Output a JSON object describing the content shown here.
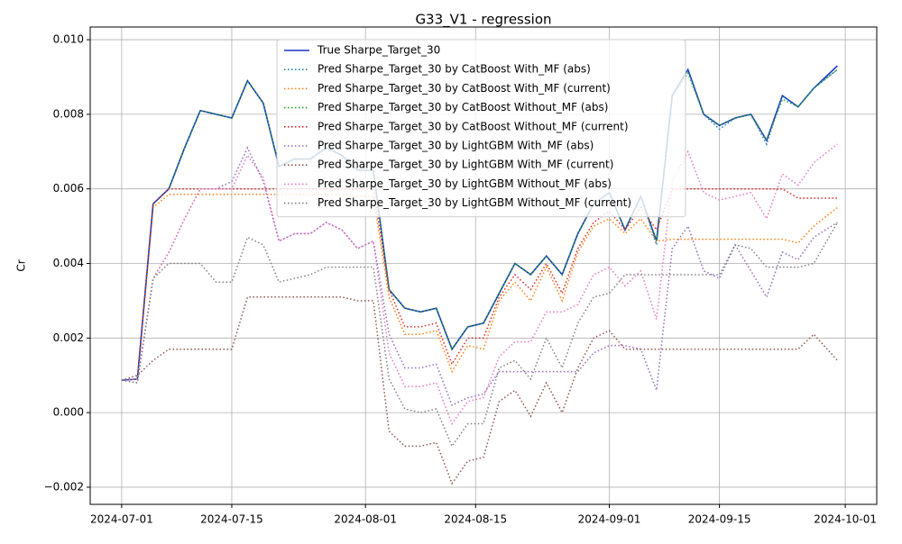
{
  "chart_data": {
    "type": "line",
    "title": "G33_V1 - regression",
    "ylabel": "Cr",
    "grid": true,
    "legend": "upper center",
    "x": [
      "2024-07-01",
      "2024-07-03",
      "2024-07-05",
      "2024-07-07",
      "2024-07-09",
      "2024-07-11",
      "2024-07-13",
      "2024-07-15",
      "2024-07-17",
      "2024-07-19",
      "2024-07-21",
      "2024-07-23",
      "2024-07-25",
      "2024-07-27",
      "2024-07-29",
      "2024-07-31",
      "2024-08-02",
      "2024-08-04",
      "2024-08-06",
      "2024-08-08",
      "2024-08-10",
      "2024-08-12",
      "2024-08-14",
      "2024-08-16",
      "2024-08-18",
      "2024-08-20",
      "2024-08-22",
      "2024-08-24",
      "2024-08-26",
      "2024-08-28",
      "2024-08-30",
      "2024-09-01",
      "2024-09-03",
      "2024-09-05",
      "2024-09-07",
      "2024-09-09",
      "2024-09-11",
      "2024-09-13",
      "2024-09-15",
      "2024-09-17",
      "2024-09-19",
      "2024-09-21",
      "2024-09-23",
      "2024-09-25",
      "2024-09-27",
      "2024-09-30"
    ],
    "xlim": [
      "2024-06-27",
      "2024-10-05"
    ],
    "xticks": [
      "2024-07-01",
      "2024-07-15",
      "2024-08-01",
      "2024-08-15",
      "2024-09-01",
      "2024-09-15",
      "2024-10-01"
    ],
    "ylim": [
      -0.00246,
      0.01034
    ],
    "yticks": [
      {
        "value": -0.002,
        "label": "−0.002"
      },
      {
        "value": 0,
        "label": "0.000"
      },
      {
        "value": 0.002,
        "label": "0.002"
      },
      {
        "value": 0.004,
        "label": "0.004"
      },
      {
        "value": 0.006,
        "label": "0.006"
      },
      {
        "value": 0.008,
        "label": "0.008"
      },
      {
        "value": 0.01,
        "label": "0.010"
      }
    ],
    "series": [
      {
        "name": "True Sharpe_Target_30",
        "color": "#1534c7",
        "linestyle": "solid",
        "values": [
          0.00087,
          0.0009,
          0.0056,
          0.006,
          0.0071,
          0.0081,
          0.008,
          0.0079,
          0.0089,
          0.0083,
          0.0066,
          0.0068,
          0.0068,
          0.0071,
          0.0069,
          0.0065,
          0.0065,
          0.0033,
          0.0028,
          0.0027,
          0.0028,
          0.0017,
          0.0023,
          0.0024,
          0.0032,
          0.004,
          0.0037,
          0.0042,
          0.0037,
          0.0048,
          0.0056,
          0.0059,
          0.0049,
          0.0058,
          0.0046,
          0.0085,
          0.0092,
          0.008,
          0.0077,
          0.0079,
          0.008,
          0.0073,
          0.0085,
          0.0082,
          0.0087,
          0.0093
        ]
      },
      {
        "name": "Pred Sharpe_Target_30 by CatBoost With_MF (abs)",
        "color": "#1f77b4",
        "linestyle": "dotted",
        "values": [
          0.00087,
          0.0009,
          0.0056,
          0.006,
          0.0071,
          0.0081,
          0.008,
          0.0079,
          0.0089,
          0.0083,
          0.0066,
          0.0068,
          0.0068,
          0.0071,
          0.0069,
          0.0065,
          0.0065,
          0.0033,
          0.0028,
          0.0027,
          0.0028,
          0.0017,
          0.0023,
          0.0024,
          0.0032,
          0.004,
          0.0037,
          0.0042,
          0.0037,
          0.0048,
          0.0056,
          0.0059,
          0.0049,
          0.0058,
          0.0045,
          0.0085,
          0.0092,
          0.008,
          0.0076,
          0.0079,
          0.008,
          0.0072,
          0.0085,
          0.0082,
          0.0087,
          0.0092
        ]
      },
      {
        "name": "Pred Sharpe_Target_30 by CatBoost With_MF (current)",
        "color": "#ff7f0e",
        "linestyle": "dotted",
        "values": [
          0.00087,
          0.0009,
          0.0055,
          0.00585,
          0.00585,
          0.00585,
          0.00585,
          0.00585,
          0.00585,
          0.00585,
          0.00585,
          0.00585,
          0.00585,
          0.00585,
          0.00585,
          0.0058,
          0.0058,
          0.0031,
          0.0021,
          0.0021,
          0.0022,
          0.0011,
          0.0018,
          0.0017,
          0.003,
          0.0035,
          0.003,
          0.0039,
          0.003,
          0.0043,
          0.005,
          0.0052,
          0.0048,
          0.0052,
          0.0046,
          0.00465,
          0.00465,
          0.00465,
          0.00465,
          0.00465,
          0.00465,
          0.00465,
          0.00465,
          0.00455,
          0.005,
          0.0055
        ]
      },
      {
        "name": "Pred Sharpe_Target_30 by CatBoost Without_MF (abs)",
        "color": "#2ca02c",
        "linestyle": "dotted",
        "values": [
          0.00087,
          0.0009,
          0.0056,
          0.006,
          0.0071,
          0.0081,
          0.008,
          0.0079,
          0.0089,
          0.0083,
          0.0066,
          0.0068,
          0.0068,
          0.0071,
          0.0069,
          0.0065,
          0.0065,
          0.0033,
          0.0028,
          0.0027,
          0.0028,
          0.0017,
          0.0023,
          0.0024,
          0.0032,
          0.004,
          0.0037,
          0.0042,
          0.0037,
          0.0048,
          0.0056,
          0.0059,
          0.0049,
          0.0058,
          0.0046,
          0.0085,
          0.0091,
          0.008,
          0.0077,
          0.0079,
          0.008,
          0.0073,
          0.0084,
          0.0082,
          0.0087,
          0.0092
        ]
      },
      {
        "name": "Pred Sharpe_Target_30 by CatBoost Without_MF (current)",
        "color": "#d62728",
        "linestyle": "dotted",
        "values": [
          0.00087,
          0.0009,
          0.0056,
          0.006,
          0.006,
          0.006,
          0.006,
          0.006,
          0.006,
          0.006,
          0.006,
          0.006,
          0.006,
          0.006,
          0.006,
          0.006,
          0.006,
          0.0033,
          0.0023,
          0.0023,
          0.0024,
          0.0013,
          0.002,
          0.002,
          0.0031,
          0.0037,
          0.0033,
          0.004,
          0.0032,
          0.0044,
          0.0051,
          0.0054,
          0.0049,
          0.0055,
          0.0049,
          0.006,
          0.006,
          0.006,
          0.006,
          0.006,
          0.006,
          0.006,
          0.006,
          0.00575,
          0.00575,
          0.00575
        ]
      },
      {
        "name": "Pred Sharpe_Target_30 by LightGBM With_MF (abs)",
        "color": "#9467bd",
        "linestyle": "dotted",
        "values": [
          0.00087,
          0.0008,
          0.0036,
          0.0043,
          0.0052,
          0.006,
          0.006,
          0.0062,
          0.0071,
          0.0062,
          0.0046,
          0.0048,
          0.0048,
          0.0051,
          0.0049,
          0.0044,
          0.0046,
          0.0021,
          0.0012,
          0.0012,
          0.0013,
          0.0002,
          0.0004,
          0.0005,
          0.0011,
          0.0011,
          0.0011,
          0.0011,
          0.0011,
          0.0011,
          0.0016,
          0.0018,
          0.0018,
          0.0017,
          0.0006,
          0.0044,
          0.005,
          0.0038,
          0.0036,
          0.0045,
          0.0038,
          0.0031,
          0.0043,
          0.0041,
          0.0047,
          0.0051
        ]
      },
      {
        "name": "Pred Sharpe_Target_30 by LightGBM With_MF (current)",
        "color": "#8c564b",
        "linestyle": "dotted",
        "values": [
          0.00087,
          0.001,
          0.0014,
          0.0017,
          0.0017,
          0.0017,
          0.0017,
          0.0017,
          0.0031,
          0.0031,
          0.0031,
          0.0031,
          0.0031,
          0.0031,
          0.0031,
          0.003,
          0.003,
          -0.0005,
          -0.0009,
          -0.0009,
          -0.0008,
          -0.0019,
          -0.0013,
          -0.0012,
          0.0003,
          0.0006,
          -0.0001,
          0.0008,
          0,
          0.0012,
          0.002,
          0.0022,
          0.0017,
          0.0017,
          0.0017,
          0.0017,
          0.0017,
          0.0017,
          0.0017,
          0.0017,
          0.0017,
          0.0017,
          0.0017,
          0.0017,
          0.0021,
          0.0014
        ]
      },
      {
        "name": "Pred Sharpe_Target_30 by LightGBM Without_MF (abs)",
        "color": "#e377c2",
        "linestyle": "dotted",
        "values": [
          0.00087,
          0.0009,
          0.0036,
          0.0043,
          0.0052,
          0.006,
          0.006,
          0.006,
          0.0069,
          0.0063,
          0.0046,
          0.0048,
          0.0048,
          0.0051,
          0.0049,
          0.0044,
          0.0046,
          0.0016,
          0.0007,
          0.0007,
          0.0008,
          -0.0003,
          0.0003,
          0.0004,
          0.0015,
          0.0019,
          0.0019,
          0.0027,
          0.0027,
          0.0029,
          0.0037,
          0.0039,
          0.0034,
          0.0038,
          0.0025,
          0.0062,
          0.007,
          0.0059,
          0.0057,
          0.0058,
          0.0059,
          0.0052,
          0.0064,
          0.0061,
          0.0067,
          0.0072
        ]
      },
      {
        "name": "Pred Sharpe_Target_30 by LightGBM Without_MF (current)",
        "color": "#7f7f7f",
        "linestyle": "dotted",
        "values": [
          0.00087,
          0.0008,
          0.0036,
          0.004,
          0.004,
          0.004,
          0.0035,
          0.0035,
          0.0047,
          0.0045,
          0.0035,
          0.0036,
          0.0037,
          0.0039,
          0.0039,
          0.0039,
          0.0039,
          0.0009,
          0.0001,
          0,
          0.0001,
          -0.0009,
          -0.0003,
          -0.0003,
          0.0012,
          0.0014,
          0.0009,
          0.002,
          0.0012,
          0.0024,
          0.0031,
          0.0032,
          0.0037,
          0.0037,
          0.0037,
          0.0037,
          0.0037,
          0.0037,
          0.0037,
          0.0045,
          0.0044,
          0.0039,
          0.0039,
          0.0039,
          0.004,
          0.0051
        ]
      }
    ]
  }
}
